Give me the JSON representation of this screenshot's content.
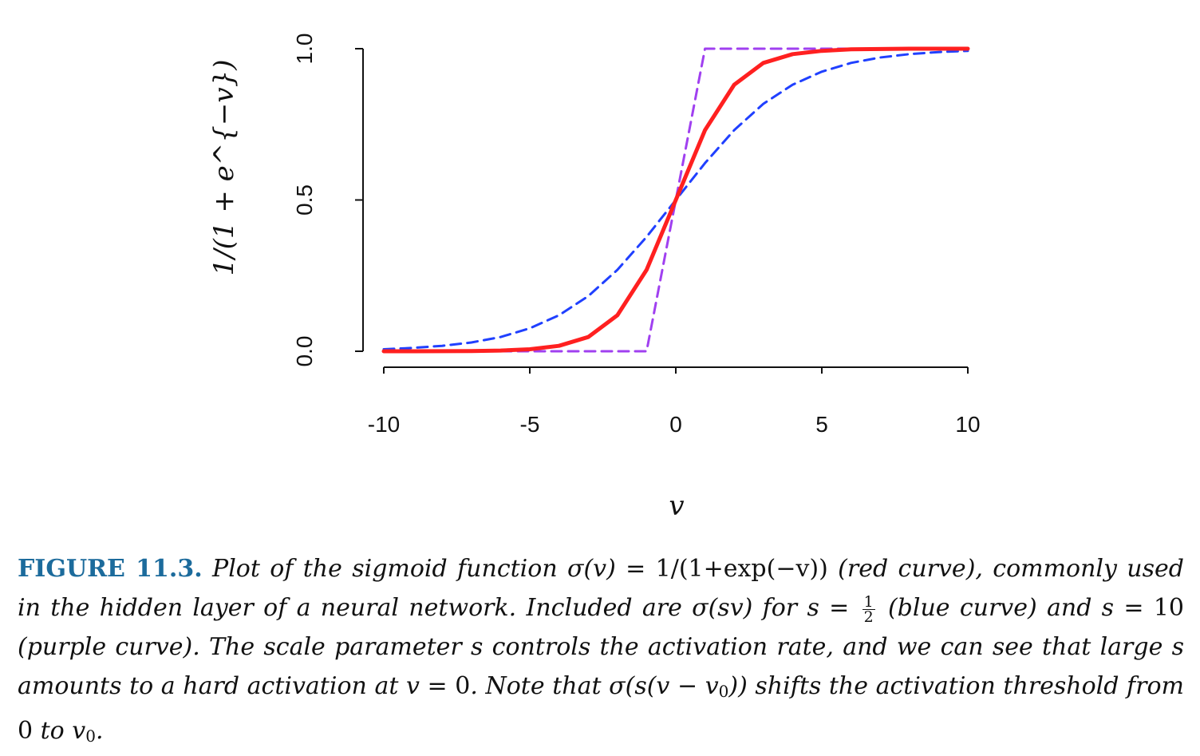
{
  "chart_data": {
    "type": "line",
    "xlabel": "v",
    "ylabel": "1/(1 + e^{−v})",
    "xlim": [
      -10,
      10
    ],
    "ylim": [
      0,
      1
    ],
    "x_ticks": [
      -10,
      -5,
      0,
      5,
      10
    ],
    "x_tick_labels": [
      "-10",
      "-5",
      "0",
      "5",
      "10"
    ],
    "y_ticks": [
      0,
      0.5,
      1
    ],
    "y_tick_labels": [
      "0.0",
      "0.5",
      "1.0"
    ],
    "grid": false,
    "legend": "none",
    "x": [
      -10,
      -9,
      -8,
      -7,
      -6,
      -5,
      -4,
      -3,
      -2,
      -1,
      0,
      1,
      2,
      3,
      4,
      5,
      6,
      7,
      8,
      9,
      10
    ],
    "series": [
      {
        "color": "#ff2020",
        "style": "solid",
        "values": [
          5e-05,
          0.00012,
          0.00034,
          0.0009,
          0.0025,
          0.0067,
          0.018,
          0.047,
          0.119,
          0.269,
          0.5,
          0.731,
          0.881,
          0.953,
          0.982,
          0.993,
          0.998,
          0.999,
          1.0,
          1.0,
          1.0
        ]
      },
      {
        "color": "#2040ff",
        "style": "dashed",
        "values": [
          0.0067,
          0.011,
          0.018,
          0.029,
          0.047,
          0.076,
          0.119,
          0.182,
          0.269,
          0.378,
          0.5,
          0.622,
          0.731,
          0.818,
          0.881,
          0.924,
          0.953,
          0.971,
          0.982,
          0.989,
          0.993
        ]
      },
      {
        "color": "#a040f0",
        "style": "dashed",
        "values": [
          0,
          0,
          0,
          0,
          0,
          0,
          0,
          0,
          0,
          0,
          0.5,
          1,
          1,
          1,
          1,
          1,
          1,
          1,
          1,
          1,
          1
        ]
      }
    ]
  },
  "caption": {
    "label": "FIGURE 11.3.",
    "p1": "Plot of the sigmoid function σ(v) = ",
    "p1_math": "1/(1+exp(−v))",
    "p2": " (red curve), commonly used in the hidden layer of a neural network. Included are σ(sv) for s = ",
    "frac_num": "1",
    "frac_den": "2",
    "p3": " (blue curve) and s = ",
    "p3_num": "10",
    "p4": " (purple curve). The scale parameter s controls the activation rate, and we can see that large s amounts to a hard activation at v = ",
    "p4_num": "0",
    "p5": ". Note that σ(s(v − v",
    "sub1": "0",
    "p6": ")) shifts the activation threshold from ",
    "p6_num": "0",
    "p7": " to v",
    "sub2": "0",
    "p8": "."
  }
}
